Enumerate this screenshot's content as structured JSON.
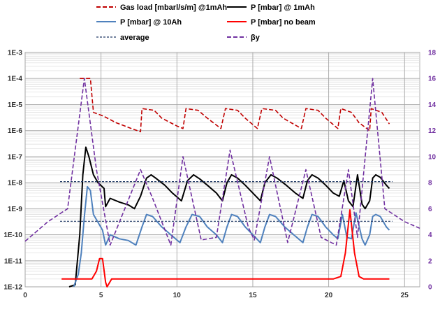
{
  "chart_data": {
    "type": "line",
    "title": "",
    "xlabel": "",
    "ylabel": "",
    "x_axis": {
      "min": 0,
      "max": 26,
      "ticks": [
        0,
        5,
        10,
        15,
        20,
        25
      ]
    },
    "y_axis_left": {
      "scale": "log",
      "min": 1e-12,
      "max": 0.001,
      "tick_values": [
        1e-12,
        1e-11,
        1e-10,
        1e-09,
        1e-08,
        1e-07,
        1e-06,
        1e-05,
        0.0001,
        0.001
      ],
      "tick_labels": [
        "1E-12",
        "1E-11",
        "1E-10",
        "1E-9",
        "1E-8",
        "1E-7",
        "1E-6",
        "1E-5",
        "1E-4",
        "1E-3"
      ]
    },
    "y_axis_right": {
      "scale": "linear",
      "min": 0,
      "max": 18,
      "ticks": [
        0,
        2,
        4,
        6,
        8,
        10,
        12,
        14,
        16,
        18
      ]
    },
    "grid": true,
    "legend_position": "top",
    "series": [
      {
        "name": "Gas load [mbarl/s/m] @1mAh",
        "axis": "left",
        "color": "#c00000",
        "style": "dashed",
        "points": [
          [
            3.6,
            0.0001
          ],
          [
            4.3,
            0.0001
          ],
          [
            4.5,
            5e-06
          ],
          [
            5.2,
            3.5e-06
          ],
          [
            6,
            2e-06
          ],
          [
            7,
            1.2e-06
          ],
          [
            7.6,
            9e-07
          ],
          [
            7.7,
            7e-06
          ],
          [
            8.5,
            6e-06
          ],
          [
            9,
            3e-06
          ],
          [
            10,
            1.5e-06
          ],
          [
            10.4,
            1.2e-06
          ],
          [
            10.6,
            7e-06
          ],
          [
            11.4,
            6e-06
          ],
          [
            12,
            3e-06
          ],
          [
            12.9,
            1.2e-06
          ],
          [
            13.2,
            7e-06
          ],
          [
            14,
            6e-06
          ],
          [
            14.5,
            3e-06
          ],
          [
            15.3,
            1.2e-06
          ],
          [
            15.6,
            7e-06
          ],
          [
            16.5,
            6e-06
          ],
          [
            17,
            3e-06
          ],
          [
            18.2,
            1.2e-06
          ],
          [
            18.5,
            7e-06
          ],
          [
            19.3,
            6e-06
          ],
          [
            19.8,
            3e-06
          ],
          [
            20.6,
            1.2e-06
          ],
          [
            20.8,
            7e-06
          ],
          [
            21.5,
            5e-06
          ],
          [
            22,
            2e-06
          ],
          [
            22.7,
            1e-06
          ],
          [
            22.8,
            7e-06
          ],
          [
            23.5,
            5e-06
          ],
          [
            24,
            1.8e-06
          ]
        ]
      },
      {
        "name": "P [mbar] @ 1mAh",
        "axis": "left",
        "color": "#000000",
        "style": "solid",
        "points": [
          [
            2.9,
            1e-12
          ],
          [
            3.3,
            1.2e-12
          ],
          [
            3.6,
            1e-10
          ],
          [
            3.8,
            2e-08
          ],
          [
            4,
            2.3e-07
          ],
          [
            4.2,
            1e-07
          ],
          [
            4.5,
            2e-08
          ],
          [
            4.8,
            1e-08
          ],
          [
            5.2,
            6e-09
          ],
          [
            5.3,
            1.2e-09
          ],
          [
            5.6,
            2.5e-09
          ],
          [
            6.2,
            1.8e-09
          ],
          [
            6.8,
            1.4e-09
          ],
          [
            7.2,
            1e-09
          ],
          [
            7.6,
            3e-09
          ],
          [
            8,
            1.5e-08
          ],
          [
            8.3,
            2e-08
          ],
          [
            8.6,
            1.5e-08
          ],
          [
            9.2,
            8e-09
          ],
          [
            9.7,
            4e-09
          ],
          [
            10.3,
            2e-09
          ],
          [
            10.7,
            1.2e-08
          ],
          [
            11.1,
            2e-08
          ],
          [
            11.5,
            1.4e-08
          ],
          [
            12,
            8e-09
          ],
          [
            12.6,
            4e-09
          ],
          [
            13,
            2e-09
          ],
          [
            13.3,
            1e-08
          ],
          [
            13.6,
            2e-08
          ],
          [
            14,
            1.5e-08
          ],
          [
            14.5,
            8e-09
          ],
          [
            15,
            4e-09
          ],
          [
            15.5,
            2e-09
          ],
          [
            15.8,
            1e-08
          ],
          [
            16.2,
            2e-08
          ],
          [
            16.6,
            1.5e-08
          ],
          [
            17.2,
            8e-09
          ],
          [
            17.8,
            4e-09
          ],
          [
            18.3,
            2.5e-09
          ],
          [
            18.6,
            1.2e-08
          ],
          [
            18.9,
            2e-08
          ],
          [
            19.3,
            1.5e-08
          ],
          [
            19.8,
            8e-09
          ],
          [
            20.3,
            4e-09
          ],
          [
            20.7,
            3e-09
          ],
          [
            21,
            1.2e-08
          ],
          [
            21.3,
            2e-09
          ],
          [
            21.6,
            1.2e-09
          ],
          [
            21.9,
            2e-08
          ],
          [
            22.2,
            1.5e-09
          ],
          [
            22.4,
            1e-09
          ],
          [
            22.7,
            2e-09
          ],
          [
            22.9,
            1.5e-08
          ],
          [
            23.1,
            2e-08
          ],
          [
            23.4,
            1.6e-08
          ],
          [
            23.8,
            8e-09
          ],
          [
            24,
            6e-09
          ]
        ]
      },
      {
        "name": "P [mbar] @ 10Ah",
        "axis": "left",
        "color": "#4f81bd",
        "style": "solid",
        "points": [
          [
            3.2,
            1e-12
          ],
          [
            3.5,
            3e-12
          ],
          [
            3.7,
            2e-11
          ],
          [
            3.9,
            5e-10
          ],
          [
            4.1,
            7e-09
          ],
          [
            4.3,
            5e-09
          ],
          [
            4.5,
            6e-10
          ],
          [
            4.8,
            3e-10
          ],
          [
            5.1,
            1.5e-10
          ],
          [
            5.3,
            4e-11
          ],
          [
            5.6,
            1e-10
          ],
          [
            6.2,
            7e-11
          ],
          [
            6.8,
            6e-11
          ],
          [
            7.3,
            4e-11
          ],
          [
            7.7,
            2e-10
          ],
          [
            8,
            6e-10
          ],
          [
            8.4,
            5e-10
          ],
          [
            9,
            2e-10
          ],
          [
            9.6,
            1e-10
          ],
          [
            10.2,
            5e-11
          ],
          [
            10.6,
            2e-10
          ],
          [
            11,
            6e-10
          ],
          [
            11.5,
            5e-10
          ],
          [
            12,
            2e-10
          ],
          [
            12.6,
            1e-10
          ],
          [
            13,
            5e-11
          ],
          [
            13.3,
            2e-10
          ],
          [
            13.6,
            6e-10
          ],
          [
            14,
            5e-10
          ],
          [
            14.5,
            2e-10
          ],
          [
            15,
            1e-10
          ],
          [
            15.5,
            5e-11
          ],
          [
            15.8,
            2e-10
          ],
          [
            16.1,
            6e-10
          ],
          [
            16.5,
            5e-10
          ],
          [
            17.1,
            2e-10
          ],
          [
            17.7,
            1e-10
          ],
          [
            18.3,
            5e-11
          ],
          [
            18.6,
            2e-10
          ],
          [
            18.9,
            6e-10
          ],
          [
            19.3,
            5e-10
          ],
          [
            19.8,
            2e-10
          ],
          [
            20.3,
            1e-10
          ],
          [
            20.6,
            7e-11
          ],
          [
            20.9,
            6e-10
          ],
          [
            21.2,
            8e-11
          ],
          [
            21.5,
            7e-11
          ],
          [
            21.8,
            7e-10
          ],
          [
            22.2,
            7e-11
          ],
          [
            22.4,
            4e-11
          ],
          [
            22.7,
            1e-10
          ],
          [
            22.9,
            5e-10
          ],
          [
            23.1,
            6e-10
          ],
          [
            23.4,
            5e-10
          ],
          [
            23.8,
            2e-10
          ],
          [
            24,
            1.5e-10
          ]
        ]
      },
      {
        "name": "P [mbar] no beam",
        "axis": "left",
        "color": "#ff0000",
        "style": "solid",
        "points": [
          [
            2.4,
            2e-12
          ],
          [
            4.4,
            2e-12
          ],
          [
            4.7,
            4e-12
          ],
          [
            4.9,
            1.2e-11
          ],
          [
            5.1,
            1.2e-11
          ],
          [
            5.3,
            1.5e-12
          ],
          [
            5.4,
            1e-12
          ],
          [
            5.7,
            2e-12
          ],
          [
            20.3,
            2e-12
          ],
          [
            20.8,
            2.5e-12
          ],
          [
            21.1,
            2e-11
          ],
          [
            21.4,
            9e-10
          ],
          [
            21.7,
            2e-11
          ],
          [
            22,
            2.5e-12
          ],
          [
            22.3,
            2e-12
          ],
          [
            24,
            2e-12
          ]
        ]
      },
      {
        "name": "average",
        "axis": "left",
        "color": "#1f3864",
        "style": "dotted",
        "points": [
          [
            2.3,
            1.1e-08
          ],
          [
            24.2,
            1.1e-08
          ]
        ]
      },
      {
        "name": "average",
        "axis": "left",
        "color": "#1f3864",
        "style": "dotted",
        "points": [
          [
            2.3,
            3.3e-10
          ],
          [
            24.2,
            3.3e-10
          ]
        ]
      },
      {
        "name": "βy",
        "axis": "right",
        "color": "#7030a0",
        "style": "dashed",
        "points": [
          [
            0,
            3.5
          ],
          [
            1.5,
            5
          ],
          [
            2.8,
            6
          ],
          [
            3.9,
            16
          ],
          [
            4.7,
            9
          ],
          [
            5.6,
            3.2
          ],
          [
            7.6,
            9
          ],
          [
            8.4,
            6.8
          ],
          [
            9.6,
            3.2
          ],
          [
            10.4,
            10
          ],
          [
            11.6,
            3.6
          ],
          [
            12.6,
            3.8
          ],
          [
            13.5,
            10.5
          ],
          [
            14.7,
            4.6
          ],
          [
            15.1,
            3.6
          ],
          [
            16.1,
            10
          ],
          [
            17.3,
            3.4
          ],
          [
            18.5,
            9
          ],
          [
            19.5,
            3.8
          ],
          [
            20.5,
            3.2
          ],
          [
            21.3,
            9
          ],
          [
            21.9,
            3.8
          ],
          [
            22.9,
            16
          ],
          [
            23.7,
            6
          ],
          [
            25,
            5
          ],
          [
            26,
            4.5
          ]
        ]
      }
    ],
    "legend": [
      "Gas load [mbarl/s/m] @1mAh",
      "P [mbar] @ 1mAh",
      "P [mbar] @ 10Ah",
      "P [mbar] no beam",
      "average",
      "βy"
    ]
  }
}
